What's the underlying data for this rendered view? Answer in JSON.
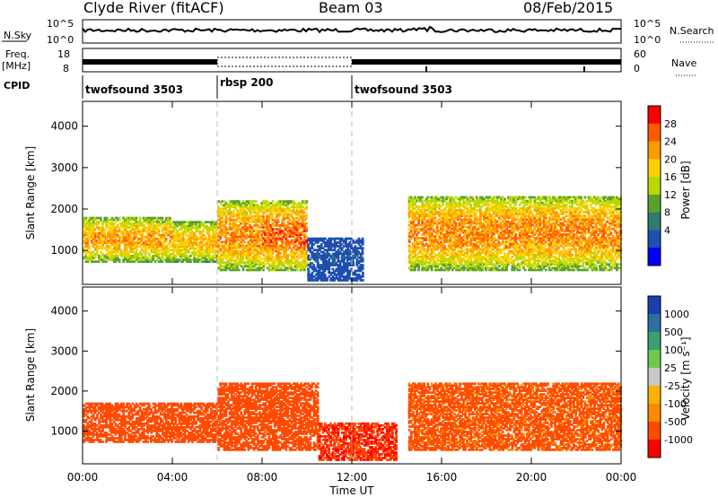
{
  "header": {
    "station": "Clyde River (fitACF)",
    "beam": "Beam 03",
    "date": "08/Feb/2015"
  },
  "strips": {
    "nsky_label": "N.Sky",
    "nsky_ticks": [
      "10^5",
      "10^0"
    ],
    "nsearch_label": "N.Search",
    "nsearch_ticks": [
      "10^5",
      "10^0"
    ],
    "freq_label": "Freq.",
    "freq_unit": "[MHz]",
    "freq_ticks": [
      "18",
      "8"
    ],
    "nave_label": "Nave",
    "nave_ticks": [
      "60",
      "0"
    ],
    "cpid_label": "CPID",
    "cpid_segments": [
      {
        "label": "twofsound 3503",
        "start_h": 0,
        "end_h": 6
      },
      {
        "label": "rbsp 200",
        "start_h": 6,
        "end_h": 12
      },
      {
        "label": "twofsound 3503",
        "start_h": 12,
        "end_h": 24
      }
    ]
  },
  "axes": {
    "x_ticks": [
      "00:00",
      "04:00",
      "08:00",
      "12:00",
      "16:00",
      "20:00",
      "00:00"
    ],
    "x_label": "Time UT",
    "y_label": "Slant Range [km]",
    "y_ticks": [
      "1000",
      "2000",
      "3000",
      "4000"
    ]
  },
  "colorbars": {
    "power": {
      "label": "Power [dB]",
      "ticks": [
        "28",
        "24",
        "20",
        "16",
        "12",
        "8",
        "4"
      ],
      "colors": [
        "#ff0000",
        "#ff5a00",
        "#ff9a00",
        "#ffd000",
        "#b8d800",
        "#5aa030",
        "#2e7d6e",
        "#1e4fb0",
        "#0000ff"
      ]
    },
    "velocity": {
      "label": "Velocity [m s⁻¹]",
      "ticks": [
        "1000",
        "500",
        "100",
        "25",
        "-25",
        "-100",
        "-500",
        "-1000"
      ],
      "colors": [
        "#1a3fb0",
        "#2e6fa0",
        "#3aa070",
        "#70c84a",
        "#c8c8c8",
        "#ffb000",
        "#ff8a00",
        "#ff4a00",
        "#ff0000"
      ]
    }
  },
  "chart_data": {
    "type": "heatmap",
    "title": "Clyde River (fitACF)",
    "xlabel": "Time UT",
    "ylabel": "Slant Range [km]",
    "xlim": [
      0,
      24
    ],
    "ylim": [
      180,
      4600
    ],
    "x_unit": "hours UT",
    "series": [
      {
        "name": "Power",
        "unit": "dB",
        "clim": [
          0,
          30
        ],
        "echo_regions": [
          {
            "t_start": 0.0,
            "t_end": 4.0,
            "range_low_km": 700,
            "range_high_km": 1800,
            "peak_db": 26
          },
          {
            "t_start": 4.0,
            "t_end": 6.0,
            "range_low_km": 700,
            "range_high_km": 1700,
            "peak_db": 24
          },
          {
            "t_start": 6.0,
            "t_end": 8.0,
            "range_low_km": 500,
            "range_high_km": 2200,
            "peak_db": 28
          },
          {
            "t_start": 8.0,
            "t_end": 10.0,
            "range_low_km": 500,
            "range_high_km": 2200,
            "peak_db": 30
          },
          {
            "t_start": 10.0,
            "t_end": 12.5,
            "range_low_km": 250,
            "range_high_km": 1300,
            "peak_db": 6
          },
          {
            "t_start": 14.5,
            "t_end": 24.0,
            "range_low_km": 500,
            "range_high_km": 2300,
            "peak_db": 28
          }
        ]
      },
      {
        "name": "Velocity",
        "unit": "m s^-1",
        "scale": "symlog",
        "clim": [
          -1000,
          1000
        ],
        "echo_regions": [
          {
            "t_start": 0.0,
            "t_end": 6.0,
            "range_low_km": 700,
            "range_high_km": 1700,
            "velocity_ms": -200
          },
          {
            "t_start": 6.0,
            "t_end": 10.5,
            "range_low_km": 500,
            "range_high_km": 2200,
            "velocity_ms": -300
          },
          {
            "t_start": 10.5,
            "t_end": 14.0,
            "range_low_km": 250,
            "range_high_km": 1200,
            "velocity_ms": -400
          },
          {
            "t_start": 14.5,
            "t_end": 24.0,
            "range_low_km": 500,
            "range_high_km": 2200,
            "velocity_ms": -100
          }
        ]
      }
    ]
  }
}
